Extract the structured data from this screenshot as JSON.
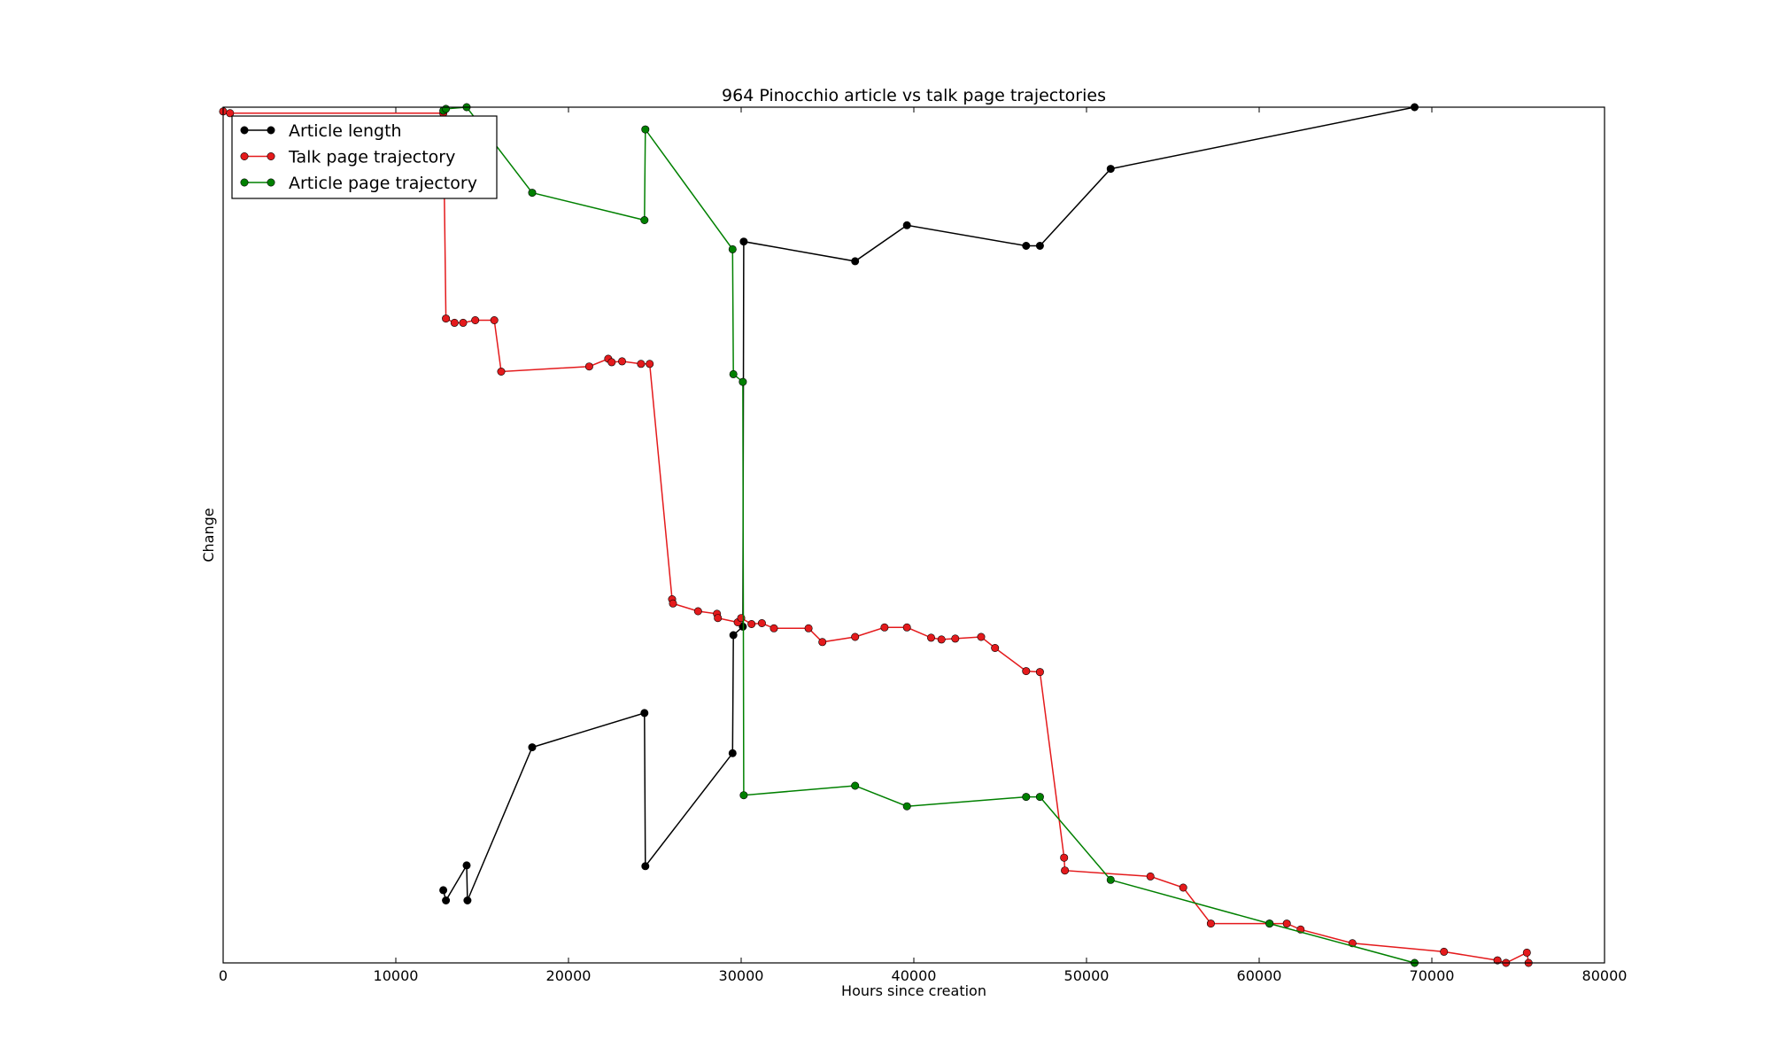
{
  "chart_data": {
    "type": "line",
    "title": "964 Pinocchio article vs talk page trajectories",
    "xlabel": "Hours since creation",
    "ylabel": "Change",
    "xlim": [
      0,
      80000
    ],
    "ylim": [
      0,
      1
    ],
    "x_ticks": [
      0,
      10000,
      20000,
      30000,
      40000,
      50000,
      60000,
      70000,
      80000
    ],
    "y_ticks_shown": false,
    "grid": false,
    "legend_position": "top-left",
    "series": [
      {
        "name": "Article length",
        "color": "#000000",
        "points": [
          [
            12750,
            0.085
          ],
          [
            12900,
            0.073
          ],
          [
            14100,
            0.114
          ],
          [
            14150,
            0.073
          ],
          [
            17900,
            0.252
          ],
          [
            24400,
            0.292
          ],
          [
            24450,
            0.113
          ],
          [
            29500,
            0.245
          ],
          [
            29550,
            0.383
          ],
          [
            30100,
            0.393
          ],
          [
            30150,
            0.843
          ],
          [
            36600,
            0.82
          ],
          [
            39600,
            0.862
          ],
          [
            46500,
            0.838
          ],
          [
            47300,
            0.838
          ],
          [
            51400,
            0.928
          ],
          [
            69000,
            1.0
          ]
        ]
      },
      {
        "name": "Talk page trajectory",
        "color": "#e41a1c",
        "points": [
          [
            0,
            0.995
          ],
          [
            400,
            0.993
          ],
          [
            12750,
            0.993
          ],
          [
            12900,
            0.753
          ],
          [
            13400,
            0.748
          ],
          [
            13900,
            0.748
          ],
          [
            14600,
            0.751
          ],
          [
            15700,
            0.751
          ],
          [
            16100,
            0.691
          ],
          [
            21200,
            0.697
          ],
          [
            22300,
            0.706
          ],
          [
            22500,
            0.702
          ],
          [
            23100,
            0.703
          ],
          [
            24200,
            0.7
          ],
          [
            24700,
            0.7
          ],
          [
            26000,
            0.425
          ],
          [
            26050,
            0.42
          ],
          [
            27500,
            0.411
          ],
          [
            28600,
            0.408
          ],
          [
            28650,
            0.403
          ],
          [
            29800,
            0.398
          ],
          [
            30000,
            0.403
          ],
          [
            30600,
            0.396
          ],
          [
            31200,
            0.397
          ],
          [
            31900,
            0.391
          ],
          [
            33900,
            0.391
          ],
          [
            34700,
            0.375
          ],
          [
            36600,
            0.381
          ],
          [
            38300,
            0.392
          ],
          [
            39600,
            0.392
          ],
          [
            41000,
            0.38
          ],
          [
            41600,
            0.378
          ],
          [
            42400,
            0.379
          ],
          [
            43900,
            0.381
          ],
          [
            44700,
            0.368
          ],
          [
            46500,
            0.341
          ],
          [
            47300,
            0.34
          ],
          [
            48700,
            0.123
          ],
          [
            48750,
            0.108
          ],
          [
            53700,
            0.101
          ],
          [
            55600,
            0.088
          ],
          [
            57200,
            0.046
          ],
          [
            60600,
            0.046
          ],
          [
            61600,
            0.046
          ],
          [
            62400,
            0.039
          ],
          [
            65400,
            0.023
          ],
          [
            70700,
            0.013
          ],
          [
            73800,
            0.003
          ],
          [
            74300,
            0.0
          ],
          [
            75500,
            0.012
          ],
          [
            75600,
            0.0
          ]
        ]
      },
      {
        "name": "Article page trajectory",
        "color": "#008000",
        "points": [
          [
            12750,
            0.996
          ],
          [
            12900,
            0.998
          ],
          [
            14100,
            1.0
          ],
          [
            17900,
            0.9
          ],
          [
            24400,
            0.868
          ],
          [
            24450,
            0.974
          ],
          [
            29500,
            0.834
          ],
          [
            29550,
            0.688
          ],
          [
            30100,
            0.679
          ],
          [
            30150,
            0.196
          ],
          [
            36600,
            0.207
          ],
          [
            39600,
            0.183
          ],
          [
            46500,
            0.194
          ],
          [
            47300,
            0.194
          ],
          [
            51400,
            0.097
          ],
          [
            60600,
            0.046
          ],
          [
            69000,
            0.0
          ]
        ]
      }
    ]
  }
}
